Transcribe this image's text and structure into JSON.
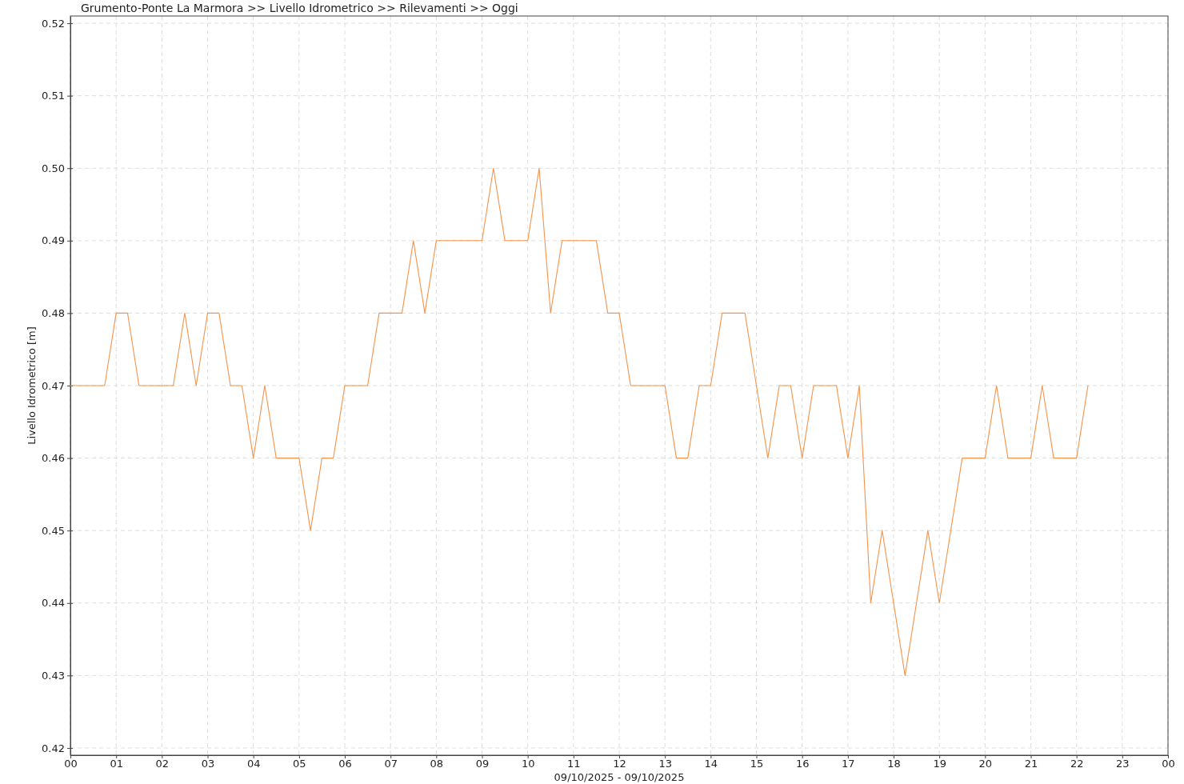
{
  "chart_data": {
    "type": "line",
    "title": "Grumento-Ponte La Marmora >> Livello Idrometrico >> Rilevamenti >> Oggi",
    "xlabel": "09/10/2025 - 09/10/2025",
    "ylabel": "Livello Idrometrico [m]",
    "x": [
      0,
      0.25,
      0.5,
      0.75,
      1,
      1.25,
      1.5,
      1.75,
      2,
      2.25,
      2.5,
      2.75,
      3,
      3.25,
      3.5,
      3.75,
      4,
      4.25,
      4.5,
      4.75,
      5,
      5.25,
      5.5,
      5.75,
      6,
      6.25,
      6.5,
      6.75,
      7,
      7.25,
      7.5,
      7.75,
      8,
      8.25,
      8.5,
      8.75,
      9,
      9.25,
      9.5,
      9.75,
      10,
      10.25,
      10.5,
      10.75,
      11,
      11.25,
      11.5,
      11.75,
      12,
      12.25,
      12.5,
      12.75,
      13,
      13.25,
      13.5,
      13.75,
      14,
      14.25,
      14.5,
      14.75,
      15,
      15.25,
      15.5,
      15.75,
      16,
      16.25,
      16.5,
      16.75,
      17,
      17.25,
      17.5,
      17.75,
      18,
      18.25,
      18.5,
      18.75,
      19,
      19.25,
      19.5,
      19.75,
      20,
      20.25,
      20.5,
      20.75,
      21,
      21.25,
      21.5,
      21.75,
      22,
      22.25
    ],
    "values": [
      0.47,
      0.47,
      0.47,
      0.47,
      0.48,
      0.48,
      0.47,
      0.47,
      0.47,
      0.47,
      0.48,
      0.47,
      0.48,
      0.48,
      0.47,
      0.47,
      0.46,
      0.47,
      0.46,
      0.46,
      0.46,
      0.45,
      0.46,
      0.46,
      0.47,
      0.47,
      0.47,
      0.48,
      0.48,
      0.48,
      0.49,
      0.48,
      0.49,
      0.49,
      0.49,
      0.49,
      0.49,
      0.5,
      0.49,
      0.49,
      0.49,
      0.5,
      0.48,
      0.49,
      0.49,
      0.49,
      0.49,
      0.48,
      0.48,
      0.47,
      0.47,
      0.47,
      0.47,
      0.46,
      0.46,
      0.47,
      0.47,
      0.48,
      0.48,
      0.48,
      0.47,
      0.46,
      0.47,
      0.47,
      0.46,
      0.47,
      0.47,
      0.47,
      0.46,
      0.47,
      0.44,
      0.45,
      0.44,
      0.43,
      0.44,
      0.45,
      0.44,
      0.45,
      0.46,
      0.46,
      0.46,
      0.47,
      0.46,
      0.46,
      0.46,
      0.47,
      0.46,
      0.46,
      0.46,
      0.47
    ],
    "color": "#f4934a",
    "xlim": [
      0,
      24
    ],
    "xticks": [
      {
        "value": 0,
        "label": "00"
      },
      {
        "value": 1,
        "label": "01"
      },
      {
        "value": 2,
        "label": "02"
      },
      {
        "value": 3,
        "label": "03"
      },
      {
        "value": 4,
        "label": "04"
      },
      {
        "value": 5,
        "label": "05"
      },
      {
        "value": 6,
        "label": "06"
      },
      {
        "value": 7,
        "label": "07"
      },
      {
        "value": 8,
        "label": "08"
      },
      {
        "value": 9,
        "label": "09"
      },
      {
        "value": 10,
        "label": "10"
      },
      {
        "value": 11,
        "label": "11"
      },
      {
        "value": 12,
        "label": "12"
      },
      {
        "value": 13,
        "label": "13"
      },
      {
        "value": 14,
        "label": "14"
      },
      {
        "value": 15,
        "label": "15"
      },
      {
        "value": 16,
        "label": "16"
      },
      {
        "value": 17,
        "label": "17"
      },
      {
        "value": 18,
        "label": "18"
      },
      {
        "value": 19,
        "label": "19"
      },
      {
        "value": 20,
        "label": "20"
      },
      {
        "value": 21,
        "label": "21"
      },
      {
        "value": 22,
        "label": "22"
      },
      {
        "value": 23,
        "label": "23"
      },
      {
        "value": 24,
        "label": "00"
      }
    ],
    "ylim": [
      0.419,
      0.521
    ],
    "yticks": [
      0.42,
      0.43,
      0.44,
      0.45,
      0.46,
      0.47,
      0.48,
      0.49,
      {
        "value": 0.5,
        "label": "0.50"
      },
      0.51,
      0.52
    ],
    "grid": true
  }
}
